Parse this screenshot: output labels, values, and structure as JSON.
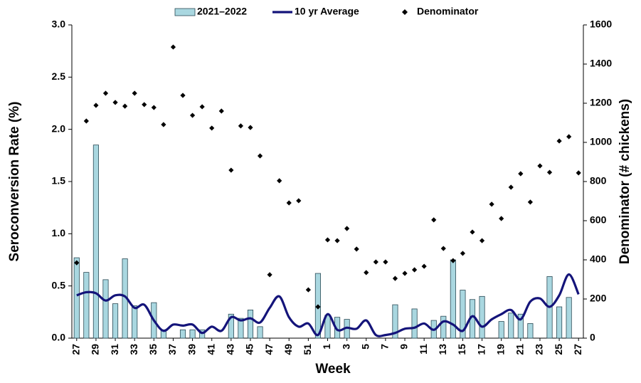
{
  "chart_data": {
    "type": "bar-line-scatter",
    "x_label": "Week",
    "y_label": "Seroconversion Rate (%)",
    "y2_label": "Denominator  (# chickens)",
    "categories": [
      "27",
      null,
      "29",
      null,
      "31",
      null,
      "33",
      null,
      "35",
      null,
      "37",
      null,
      "39",
      null,
      "41",
      null,
      "43",
      null,
      "45",
      null,
      "47",
      null,
      "49",
      null,
      "51",
      null,
      "1",
      null,
      "3",
      null,
      "5",
      null,
      "7",
      null,
      "9",
      null,
      "11",
      null,
      "13",
      null,
      "15",
      null,
      "17",
      null,
      "19",
      null,
      "21",
      null,
      "23",
      null,
      "25",
      null,
      "27"
    ],
    "series": [
      {
        "name": "2021–2022",
        "kind": "bar",
        "color": "#a9d7e0",
        "values": [
          0.77,
          0.63,
          1.85,
          0.56,
          0.33,
          0.76,
          0.31,
          0,
          0.34,
          0.08,
          0,
          0.08,
          0.08,
          0.08,
          0,
          0,
          0.23,
          0.19,
          0.27,
          0.11,
          0,
          0,
          0,
          0,
          0,
          0.62,
          0.22,
          0.2,
          0.18,
          0,
          0,
          0,
          0,
          0.32,
          0,
          0.28,
          0,
          0.17,
          0.21,
          0.75,
          0.46,
          0.37,
          0.4,
          0,
          0.16,
          0.24,
          0.23,
          0.14,
          0,
          0.59,
          0.3,
          0.39,
          0
        ]
      },
      {
        "name": "10 yr Average",
        "kind": "line",
        "color": "#14147a",
        "values": [
          0.41,
          0.44,
          0.43,
          0.36,
          0.41,
          0.4,
          0.29,
          0.32,
          0.17,
          0.07,
          0.13,
          0.12,
          0.13,
          0.05,
          0.11,
          0.07,
          0.2,
          0.17,
          0.19,
          0.15,
          0.29,
          0.4,
          0.2,
          0.11,
          0.14,
          0.03,
          0.23,
          0.08,
          0.1,
          0.09,
          0.17,
          0.03,
          0.03,
          0.05,
          0.09,
          0.1,
          0.14,
          0.08,
          0.16,
          0.13,
          0.07,
          0.21,
          0.11,
          0.18,
          0.23,
          0.27,
          0.18,
          0.35,
          0.38,
          0.3,
          0.41,
          0.61,
          0.42
        ]
      },
      {
        "name": "Denominator",
        "kind": "scatter",
        "axis": "y2",
        "color": "#000000",
        "values": [
          385,
          1109,
          1189,
          1251,
          1204,
          1185,
          1251,
          1193,
          1178,
          1091,
          1487,
          1240,
          1138,
          1182,
          1073,
          1160,
          858,
          1084,
          1076,
          931,
          324,
          804,
          691,
          702,
          247,
          160,
          502,
          498,
          560,
          455,
          335,
          389,
          389,
          305,
          331,
          349,
          367,
          604,
          458,
          396,
          433,
          542,
          498,
          684,
          611,
          771,
          840,
          695,
          880,
          847,
          1007,
          1029,
          844
        ]
      }
    ],
    "ylim": [
      0,
      3
    ],
    "yticks": [
      {
        "value": 0,
        "label": "0.0"
      },
      {
        "value": 0.5,
        "label": "0.5"
      },
      {
        "value": 1,
        "label": "1.0"
      },
      {
        "value": 1.5,
        "label": "1.5"
      },
      {
        "value": 2,
        "label": "2.0"
      },
      {
        "value": 2.5,
        "label": "2.5"
      },
      {
        "value": 3,
        "label": "3.0"
      }
    ],
    "y2lim": [
      0,
      1600
    ],
    "y2ticks": [
      0,
      200,
      400,
      600,
      800,
      1000,
      1200,
      1400,
      1600
    ],
    "grid": false,
    "legend": "top"
  }
}
